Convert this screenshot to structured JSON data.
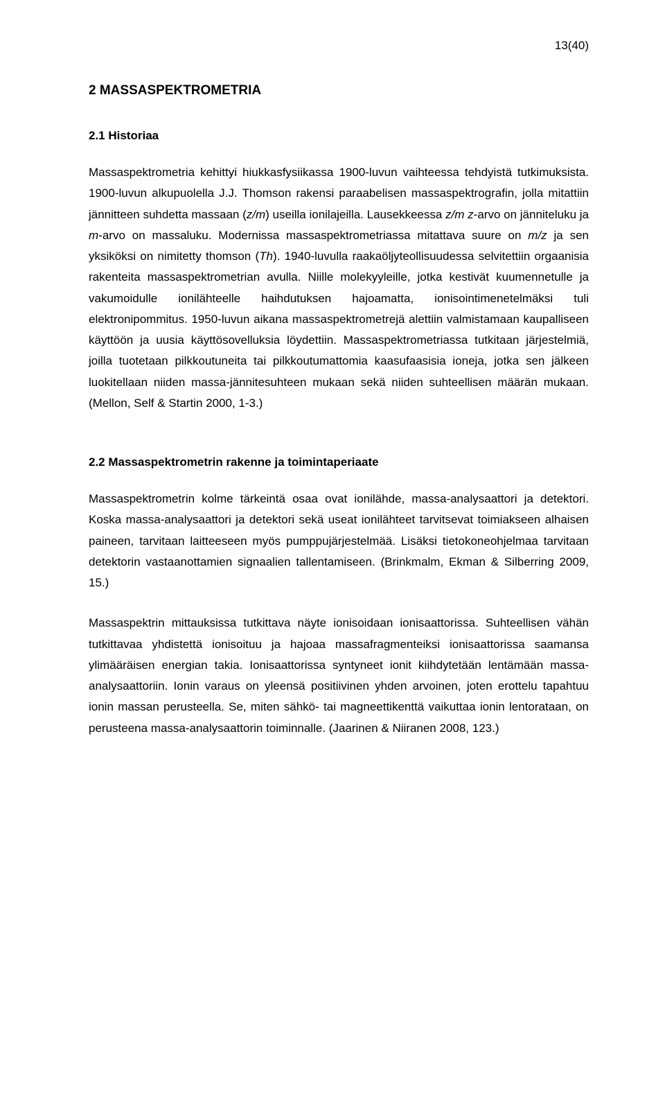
{
  "page_number": "13(40)",
  "heading_main": "2 MASSASPEKTROMETRIA",
  "section_2_1": {
    "heading": "2.1  Historiaa",
    "paragraph": "Massaspektrometria kehittyi hiukkasfysiikassa 1900-luvun vaihteessa tehdyistä tutkimuksista. 1900-luvun alkupuolella J.J. Thomson rakensi paraabelisen massaspektrografin, jolla mitattiin jännitteen suhdetta massaan (z/m) useilla ionilajeilla. Lausekkeessa z/m z-arvo on jänniteluku ja m-arvo on massaluku. Modernissa massaspektrometriassa mitattava suure on m/z ja sen yksiköksi on nimitetty thomson (Th). 1940-luvulla raakaöljyteollisuudessa selvitettiin orgaanisia rakenteita massaspektrometrian avulla. Niille molekyyleille, jotka kestivät kuumennetulle ja vakumoidulle ionilähteelle haihdutuksen hajoamatta, ionisointimenetelmäksi tuli elektronipommitus. 1950-luvun aikana massaspektrometrejä alettiin valmistamaan kaupalliseen käyttöön ja uusia käyttösovelluksia löydettiin. Massaspektrometriassa tutkitaan järjestelmiä, joilla tuotetaan pilkkoutuneita tai pilkkoutumattomia kaasufaasisia ioneja, jotka sen jälkeen luokitellaan niiden massa-jännitesuhteen mukaan sekä niiden suhteellisen määrän mukaan. (Mellon, Self & Startin 2000, 1-3.)"
  },
  "section_2_2": {
    "heading": "2.2  Massaspektrometrin rakenne ja toimintaperiaate",
    "paragraph_1": "Massaspektrometrin kolme tärkeintä osaa ovat ionilähde, massa-analysaattori ja detektori. Koska massa-analysaattori ja detektori sekä useat ionilähteet tarvitsevat toimiakseen alhaisen paineen, tarvitaan laitteeseen myös pumppujärjestelmää. Lisäksi tietokoneohjelmaa tarvitaan detektorin vastaanottamien signaalien tallentamiseen. (Brinkmalm, Ekman & Silberring 2009, 15.)",
    "paragraph_2": "Massaspektrin mittauksissa tutkittava näyte ionisoidaan ionisaattorissa. Suhteellisen vähän tutkittavaa yhdistettä ionisoituu ja hajoaa massafragmenteiksi ionisaattorissa saamansa ylimääräisen energian takia. Ionisaattorissa syntyneet ionit kiihdytetään lentämään massa-analysaattoriin. Ionin varaus on yleensä positiivinen yhden arvoinen, joten erottelu tapahtuu ionin massan perusteella. Se, miten sähkö- tai magneettikenttä vaikuttaa ionin lentorataan, on perusteena massa-analysaattorin toiminnalle. (Jaarinen & Niiranen 2008, 123.)"
  }
}
